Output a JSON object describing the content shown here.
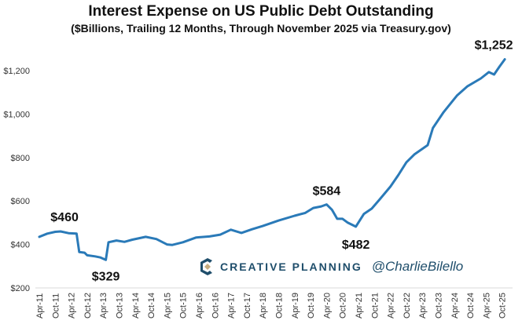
{
  "chart_data": {
    "type": "line",
    "title": "Interest Expense on US Public Debt Outstanding",
    "subtitle": "($Billions, Trailing 12 Months, Through November 2025 via Treasury.gov)",
    "xlabel": "",
    "ylabel": "",
    "ylim": [
      200,
      1300
    ],
    "yticks": [
      200,
      400,
      600,
      800,
      1000,
      1200
    ],
    "ytick_labels": [
      "$200",
      "$400",
      "$600",
      "$800",
      "$1,000",
      "$1,200"
    ],
    "xtick_labels": [
      "Apr-11",
      "Oct-11",
      "Apr-12",
      "Oct-12",
      "Apr-13",
      "Oct-13",
      "Apr-14",
      "Oct-14",
      "Apr-15",
      "Oct-15",
      "Apr-16",
      "Oct-16",
      "Apr-17",
      "Oct-17",
      "Apr-18",
      "Oct-18",
      "Apr-19",
      "Oct-19",
      "Apr-20",
      "Oct-20",
      "Apr-21",
      "Oct-21",
      "Apr-22",
      "Oct-22",
      "Apr-23",
      "Oct-23",
      "Apr-24",
      "Oct-24",
      "Apr-25",
      "Oct-25"
    ],
    "grid": false,
    "line_color": "#2a7ab8",
    "series": [
      {
        "points": [
          [
            "2011-04",
            435
          ],
          [
            "2011-07",
            450
          ],
          [
            "2011-10",
            458
          ],
          [
            "2011-12",
            460
          ],
          [
            "2012-03",
            452
          ],
          [
            "2012-06",
            450
          ],
          [
            "2012-07",
            365
          ],
          [
            "2012-09",
            362
          ],
          [
            "2012-10",
            350
          ],
          [
            "2013-01",
            345
          ],
          [
            "2013-03",
            340
          ],
          [
            "2013-05",
            329
          ],
          [
            "2013-06",
            410
          ],
          [
            "2013-09",
            418
          ],
          [
            "2013-12",
            412
          ],
          [
            "2014-03",
            422
          ],
          [
            "2014-08",
            435
          ],
          [
            "2014-12",
            425
          ],
          [
            "2015-04",
            400
          ],
          [
            "2015-06",
            398
          ],
          [
            "2015-10",
            410
          ],
          [
            "2016-03",
            432
          ],
          [
            "2016-08",
            437
          ],
          [
            "2016-12",
            445
          ],
          [
            "2017-04",
            468
          ],
          [
            "2017-08",
            453
          ],
          [
            "2017-12",
            470
          ],
          [
            "2018-04",
            485
          ],
          [
            "2018-10",
            510
          ],
          [
            "2019-04",
            532
          ],
          [
            "2019-08",
            545
          ],
          [
            "2019-11",
            568
          ],
          [
            "2020-02",
            575
          ],
          [
            "2020-04",
            584
          ],
          [
            "2020-06",
            560
          ],
          [
            "2020-08",
            518
          ],
          [
            "2020-10",
            518
          ],
          [
            "2020-12",
            500
          ],
          [
            "2021-03",
            482
          ],
          [
            "2021-06",
            540
          ],
          [
            "2021-09",
            565
          ],
          [
            "2021-12",
            608
          ],
          [
            "2022-04",
            666
          ],
          [
            "2022-07",
            720
          ],
          [
            "2022-10",
            778
          ],
          [
            "2023-01",
            814
          ],
          [
            "2023-06",
            857
          ],
          [
            "2023-08",
            936
          ],
          [
            "2023-12",
            1009
          ],
          [
            "2024-05",
            1085
          ],
          [
            "2024-09",
            1128
          ],
          [
            "2025-02",
            1164
          ],
          [
            "2025-05",
            1193
          ],
          [
            "2025-07",
            1182
          ],
          [
            "2025-09",
            1218
          ],
          [
            "2025-11",
            1252
          ]
        ]
      }
    ],
    "annotations": [
      {
        "label": "$460",
        "date": "2011-12",
        "value": 460
      },
      {
        "label": "$329",
        "date": "2013-05",
        "value": 329
      },
      {
        "label": "$584",
        "date": "2020-04",
        "value": 584
      },
      {
        "label": "$482",
        "date": "2021-03",
        "value": 482
      },
      {
        "label": "$1,252",
        "date": "2025-11",
        "value": 1252
      }
    ]
  },
  "branding": {
    "company": "CREATIVE PLANNING",
    "handle": "@CharlieBilello",
    "logo_colors": [
      "#1f4e6b",
      "#c8ad7f"
    ]
  }
}
